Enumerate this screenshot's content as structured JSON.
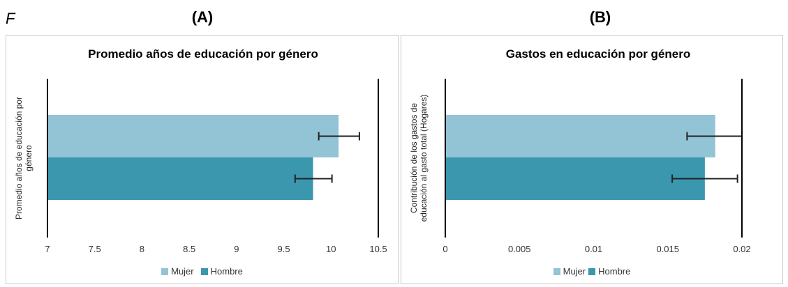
{
  "corner_label": "F",
  "panels": [
    {
      "label": "(A)"
    },
    {
      "label": "(B)"
    }
  ],
  "colors": {
    "mujer": "#92c4d5",
    "hombre": "#3a97ad",
    "errorbar": "#222222",
    "axis": "#000000"
  },
  "chart_data": [
    {
      "type": "bar",
      "orientation": "horizontal",
      "title": "Promedio años de educación por género",
      "ylabel": [
        "Promedio años de educación por",
        "género"
      ],
      "xlabel": "",
      "xlim": [
        7,
        10.5
      ],
      "xticks": [
        7,
        7.5,
        8,
        8.5,
        9,
        9.5,
        10,
        10.5
      ],
      "xtick_labels": [
        "7",
        "7.5",
        "8",
        "8.5",
        "9",
        "9.5",
        "10",
        "10.5"
      ],
      "series": [
        {
          "name": "Mujer",
          "value": 10.08,
          "err_low": 9.87,
          "err_high": 10.3
        },
        {
          "name": "Hombre",
          "value": 9.81,
          "err_low": 9.62,
          "err_high": 10.01
        }
      ],
      "legend": [
        "Mujer",
        "Hombre"
      ],
      "legend_position": "bottom",
      "grid": false
    },
    {
      "type": "bar",
      "orientation": "horizontal",
      "title": "Gastos en educación por género",
      "ylabel": [
        "Contribución de los gastos de",
        "educación al gasto total (Hogares)"
      ],
      "xlabel": "",
      "xlim": [
        0,
        0.02
      ],
      "xticks": [
        0,
        0.005,
        0.01,
        0.015,
        0.02
      ],
      "xtick_labels": [
        "0",
        "0.005",
        "0.01",
        "0.015",
        "0.02"
      ],
      "series": [
        {
          "name": "Mujer",
          "value": 0.0182,
          "err_low": 0.0163,
          "err_high": 0.02
        },
        {
          "name": "Hombre",
          "value": 0.0175,
          "err_low": 0.0153,
          "err_high": 0.0197
        }
      ],
      "legend": [
        "Mujer",
        "Hombre"
      ],
      "legend_position": "bottom",
      "grid": false
    }
  ]
}
